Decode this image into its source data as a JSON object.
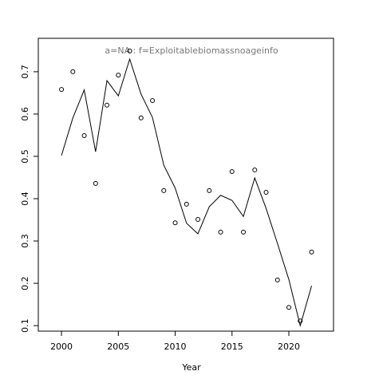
{
  "chart_data": {
    "type": "line",
    "title": "a=NA  :  f=Exploitablebiomassnoageinfo",
    "x_label": "Year",
    "x": [
      2000,
      2001,
      2002,
      2003,
      2004,
      2005,
      2006,
      2007,
      2008,
      2009,
      2010,
      2011,
      2012,
      2013,
      2014,
      2015,
      2016,
      2017,
      2018,
      2019,
      2020,
      2021,
      2022
    ],
    "series": [
      {
        "style": "points",
        "color": "#000000",
        "values": [
          0.658,
          0.7,
          0.549,
          0.436,
          0.621,
          0.692,
          0.749,
          0.591,
          0.632,
          0.419,
          0.343,
          0.387,
          0.351,
          0.419,
          0.321,
          0.464,
          0.321,
          0.468,
          0.415,
          0.208,
          0.143,
          0.111,
          0.274
        ]
      },
      {
        "style": "line",
        "color": "#000000",
        "values": [
          0.502,
          0.591,
          0.657,
          0.511,
          0.679,
          0.643,
          0.73,
          0.647,
          0.592,
          0.479,
          0.425,
          0.342,
          0.317,
          0.381,
          0.408,
          0.396,
          0.358,
          0.449,
          0.377,
          0.294,
          0.209,
          0.1,
          0.194
        ]
      }
    ],
    "xlim": [
      1997.96,
      2023.93
    ],
    "xticks": [
      2000,
      2005,
      2010,
      2015,
      2020
    ],
    "ylim": [
      0.087,
      0.779
    ],
    "yticks": [
      0.1,
      0.2,
      0.3,
      0.4,
      0.5,
      0.6,
      0.7
    ]
  }
}
